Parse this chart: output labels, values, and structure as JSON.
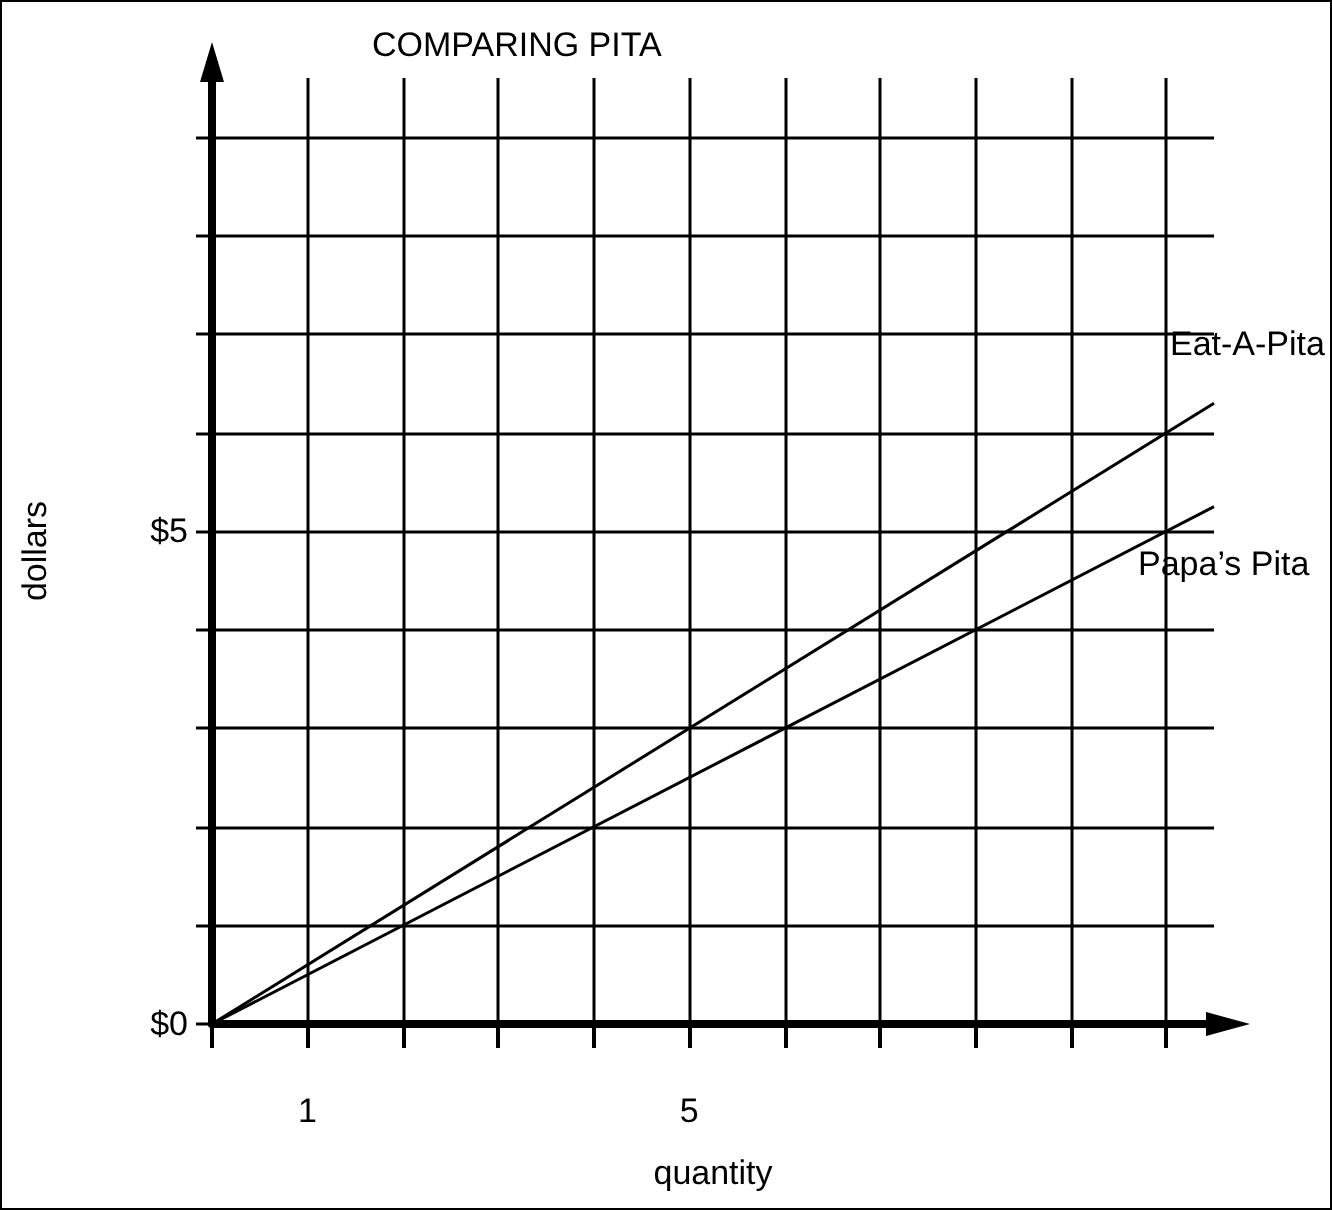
{
  "chart_data": {
    "type": "line",
    "title": "COMPARING PITA",
    "xlabel": "quantity",
    "ylabel": "dollars",
    "x": [
      0,
      10.5
    ],
    "series": [
      {
        "name": "Eat-A-Pita",
        "color": "#000000",
        "values": [
          0,
          6.3
        ]
      },
      {
        "name": "Papa’s Pita",
        "color": "#000000",
        "values": [
          0,
          5.25
        ]
      }
    ],
    "xlim": [
      0,
      10.5
    ],
    "ylim": [
      0,
      9.6
    ],
    "xticks": [
      {
        "value": 0,
        "label": null
      },
      1,
      {
        "value": 2,
        "label": null
      },
      {
        "value": 3,
        "label": null
      },
      {
        "value": 4,
        "label": null
      },
      5,
      {
        "value": 6,
        "label": null
      },
      {
        "value": 7,
        "label": null
      },
      {
        "value": 8,
        "label": null
      },
      {
        "value": 9,
        "label": null
      },
      {
        "value": 10,
        "label": null
      }
    ],
    "yticks": [
      {
        "value": 0,
        "label": "$0"
      },
      {
        "value": 1,
        "label": null
      },
      {
        "value": 2,
        "label": null
      },
      {
        "value": 3,
        "label": null
      },
      {
        "value": 4,
        "label": null
      },
      {
        "value": 5,
        "label": "$5"
      },
      {
        "value": 6,
        "label": null
      },
      {
        "value": 7,
        "label": null
      },
      {
        "value": 8,
        "label": null
      },
      {
        "value": 9,
        "label": null
      }
    ],
    "grid": true,
    "legend": false,
    "marker": "none",
    "line_style": "solid"
  }
}
